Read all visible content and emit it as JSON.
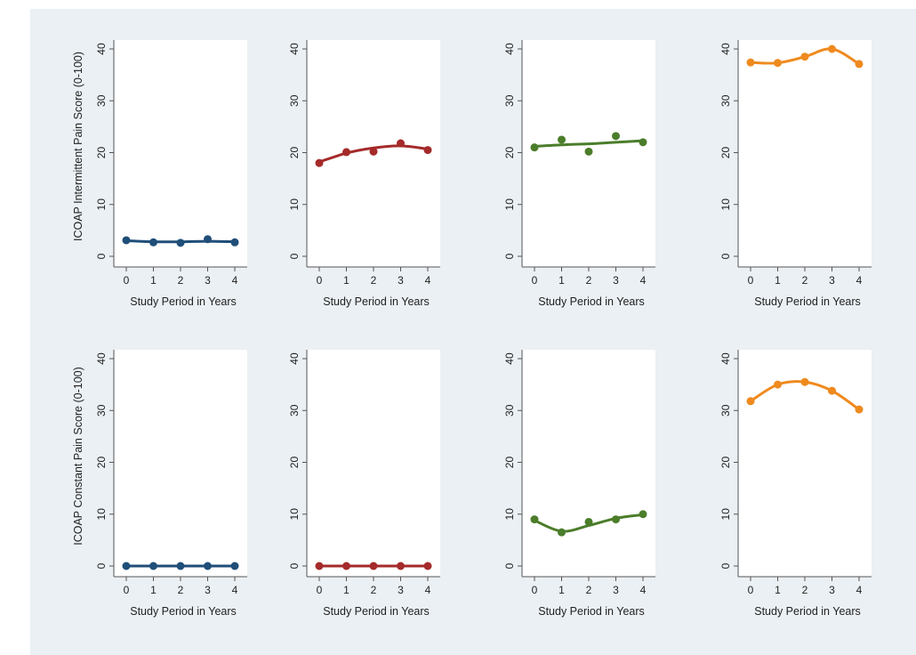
{
  "chart_data": [
    {
      "type": "line",
      "panel": "row1-col1",
      "x": [
        0,
        1,
        2,
        3,
        4
      ],
      "values": [
        3.1,
        2.7,
        2.6,
        3.3,
        2.7
      ],
      "fit": [
        3.0,
        2.8,
        2.8,
        2.9,
        2.8
      ],
      "color": "#1f4e79",
      "ylabel": "ICOAP Intermittent Pain Score (0-100)",
      "xlabel": "Study Period in Years",
      "xticks": [
        "0",
        "1",
        "2",
        "3",
        "4"
      ],
      "yticks": [
        "0",
        "10",
        "20",
        "30",
        "40"
      ],
      "ylim": [
        0,
        40
      ]
    },
    {
      "type": "line",
      "panel": "row1-col2",
      "x": [
        0,
        1,
        2,
        3,
        4
      ],
      "values": [
        18.0,
        20.1,
        20.2,
        21.8,
        20.5
      ],
      "fit": [
        18.2,
        19.9,
        20.9,
        21.3,
        20.7
      ],
      "color": "#a52a2a",
      "ylabel": "",
      "xlabel": "Study Period in Years",
      "xticks": [
        "0",
        "1",
        "2",
        "3",
        "4"
      ],
      "yticks": [
        "0",
        "10",
        "20",
        "30",
        "40"
      ],
      "ylim": [
        0,
        40
      ]
    },
    {
      "type": "line",
      "panel": "row1-col3",
      "x": [
        0,
        1,
        2,
        3,
        4
      ],
      "values": [
        21.0,
        22.5,
        20.2,
        23.2,
        22.0
      ],
      "fit": [
        21.2,
        21.5,
        21.7,
        22.0,
        22.3
      ],
      "color": "#4b7d2a",
      "ylabel": "",
      "xlabel": "Study Period in Years",
      "xticks": [
        "0",
        "1",
        "2",
        "3",
        "4"
      ],
      "yticks": [
        "0",
        "10",
        "20",
        "30",
        "40"
      ],
      "ylim": [
        0,
        40
      ]
    },
    {
      "type": "line",
      "panel": "row1-col4",
      "x": [
        0,
        1,
        2,
        3,
        4
      ],
      "values": [
        37.4,
        37.3,
        38.5,
        40.0,
        37.1
      ],
      "fit": [
        37.4,
        37.3,
        38.5,
        40.0,
        37.1
      ],
      "color": "#ef8a1e",
      "ylabel": "",
      "xlabel": "Study Period in Years",
      "xticks": [
        "0",
        "1",
        "2",
        "3",
        "4"
      ],
      "yticks": [
        "0",
        "10",
        "20",
        "30",
        "40"
      ],
      "ylim": [
        0,
        40
      ]
    },
    {
      "type": "line",
      "panel": "row2-col1",
      "x": [
        0,
        1,
        2,
        3,
        4
      ],
      "values": [
        0,
        0,
        0,
        0,
        0
      ],
      "fit": [
        0,
        0,
        0,
        0,
        0
      ],
      "color": "#1f4e79",
      "ylabel": "ICOAP Constant Pain Score (0-100)",
      "xlabel": "Study Period in Years",
      "xticks": [
        "0",
        "1",
        "2",
        "3",
        "4"
      ],
      "yticks": [
        "0",
        "10",
        "20",
        "30",
        "40"
      ],
      "ylim": [
        0,
        40
      ]
    },
    {
      "type": "line",
      "panel": "row2-col2",
      "x": [
        0,
        1,
        2,
        3,
        4
      ],
      "values": [
        0,
        0,
        0,
        0,
        0
      ],
      "fit": [
        0,
        0,
        0,
        0,
        0
      ],
      "color": "#a52a2a",
      "ylabel": "",
      "xlabel": "Study Period in Years",
      "xticks": [
        "0",
        "1",
        "2",
        "3",
        "4"
      ],
      "yticks": [
        "0",
        "10",
        "20",
        "30",
        "40"
      ],
      "ylim": [
        0,
        40
      ]
    },
    {
      "type": "line",
      "panel": "row2-col3",
      "x": [
        0,
        1,
        2,
        3,
        4
      ],
      "values": [
        9.0,
        6.5,
        8.5,
        9.0,
        10.0
      ],
      "fit": [
        8.8,
        6.7,
        7.8,
        9.2,
        9.9
      ],
      "color": "#4b7d2a",
      "ylabel": "",
      "xlabel": "Study Period in Years",
      "xticks": [
        "0",
        "1",
        "2",
        "3",
        "4"
      ],
      "yticks": [
        "0",
        "10",
        "20",
        "30",
        "40"
      ],
      "ylim": [
        0,
        40
      ]
    },
    {
      "type": "line",
      "panel": "row2-col4",
      "x": [
        0,
        1,
        2,
        3,
        4
      ],
      "values": [
        31.8,
        35.0,
        35.5,
        33.8,
        30.2
      ],
      "fit": [
        31.8,
        35.0,
        35.5,
        33.8,
        30.2
      ],
      "color": "#ef8a1e",
      "ylabel": "",
      "xlabel": "Study Period in Years",
      "xticks": [
        "0",
        "1",
        "2",
        "3",
        "4"
      ],
      "yticks": [
        "0",
        "10",
        "20",
        "30",
        "40"
      ],
      "ylim": [
        0,
        40
      ]
    }
  ]
}
